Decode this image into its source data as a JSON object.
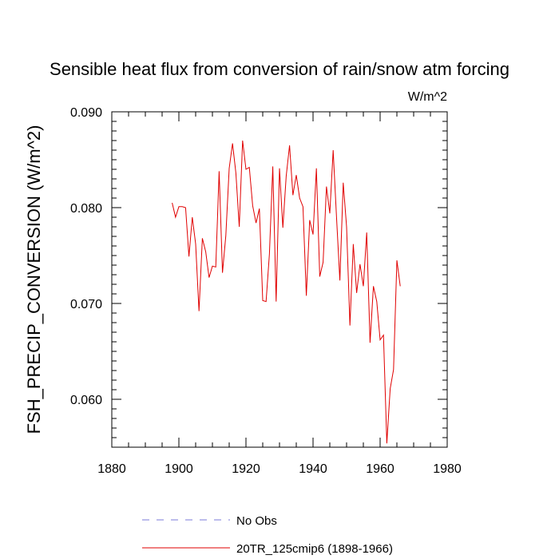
{
  "chart_data": {
    "type": "line",
    "title": "Sensible heat flux from conversion of rain/snow atm forcing",
    "units": "W/m^2",
    "xlabel": "",
    "ylabel": "FSH_PRECIP_CONVERSION  (W/m^2)",
    "xlim": [
      1880,
      1980
    ],
    "ylim": [
      0.055,
      0.09
    ],
    "x_ticks": [
      1880,
      1900,
      1920,
      1940,
      1960,
      1980
    ],
    "x_tick_labels": [
      "1880",
      "1900",
      "1920",
      "1940",
      "1960",
      "1980"
    ],
    "y_ticks": [
      0.06,
      0.07,
      0.08,
      0.09
    ],
    "y_tick_labels": [
      "0.060",
      "0.070",
      "0.080",
      "0.090"
    ],
    "legend_position": "bottom",
    "series": [
      {
        "name": "No Obs",
        "color": "#7b7bd8",
        "dash": "dashed",
        "x": [],
        "values": []
      },
      {
        "name": "20TR_125cmip6 (1898-1966)",
        "color": "#e00000",
        "dash": "solid",
        "x": [
          1898,
          1899,
          1900,
          1901,
          1902,
          1903,
          1904,
          1905,
          1906,
          1907,
          1908,
          1909,
          1910,
          1911,
          1912,
          1913,
          1914,
          1915,
          1916,
          1917,
          1918,
          1919,
          1920,
          1921,
          1922,
          1923,
          1924,
          1925,
          1926,
          1927,
          1928,
          1929,
          1930,
          1931,
          1932,
          1933,
          1934,
          1935,
          1936,
          1937,
          1938,
          1939,
          1940,
          1941,
          1942,
          1943,
          1944,
          1945,
          1946,
          1947,
          1948,
          1949,
          1950,
          1951,
          1952,
          1953,
          1954,
          1955,
          1956,
          1957,
          1958,
          1959,
          1960,
          1961,
          1962,
          1963,
          1964,
          1965,
          1966
        ],
        "values": [
          0.0805,
          0.079,
          0.0801,
          0.0801,
          0.08,
          0.0749,
          0.079,
          0.0762,
          0.0692,
          0.0768,
          0.0754,
          0.0727,
          0.0739,
          0.0738,
          0.0838,
          0.0732,
          0.0771,
          0.0841,
          0.0867,
          0.0836,
          0.078,
          0.087,
          0.084,
          0.0842,
          0.0802,
          0.0784,
          0.0799,
          0.0703,
          0.0702,
          0.0752,
          0.0843,
          0.0702,
          0.0841,
          0.0779,
          0.0833,
          0.0865,
          0.0813,
          0.0834,
          0.081,
          0.0801,
          0.0708,
          0.0787,
          0.0772,
          0.0841,
          0.0728,
          0.0743,
          0.0822,
          0.0794,
          0.086,
          0.079,
          0.0724,
          0.0826,
          0.078,
          0.0677,
          0.0762,
          0.0711,
          0.0741,
          0.0718,
          0.0774,
          0.0659,
          0.0718,
          0.0702,
          0.0662,
          0.0667,
          0.0554,
          0.0611,
          0.0631,
          0.0745,
          0.0718
        ]
      }
    ]
  }
}
